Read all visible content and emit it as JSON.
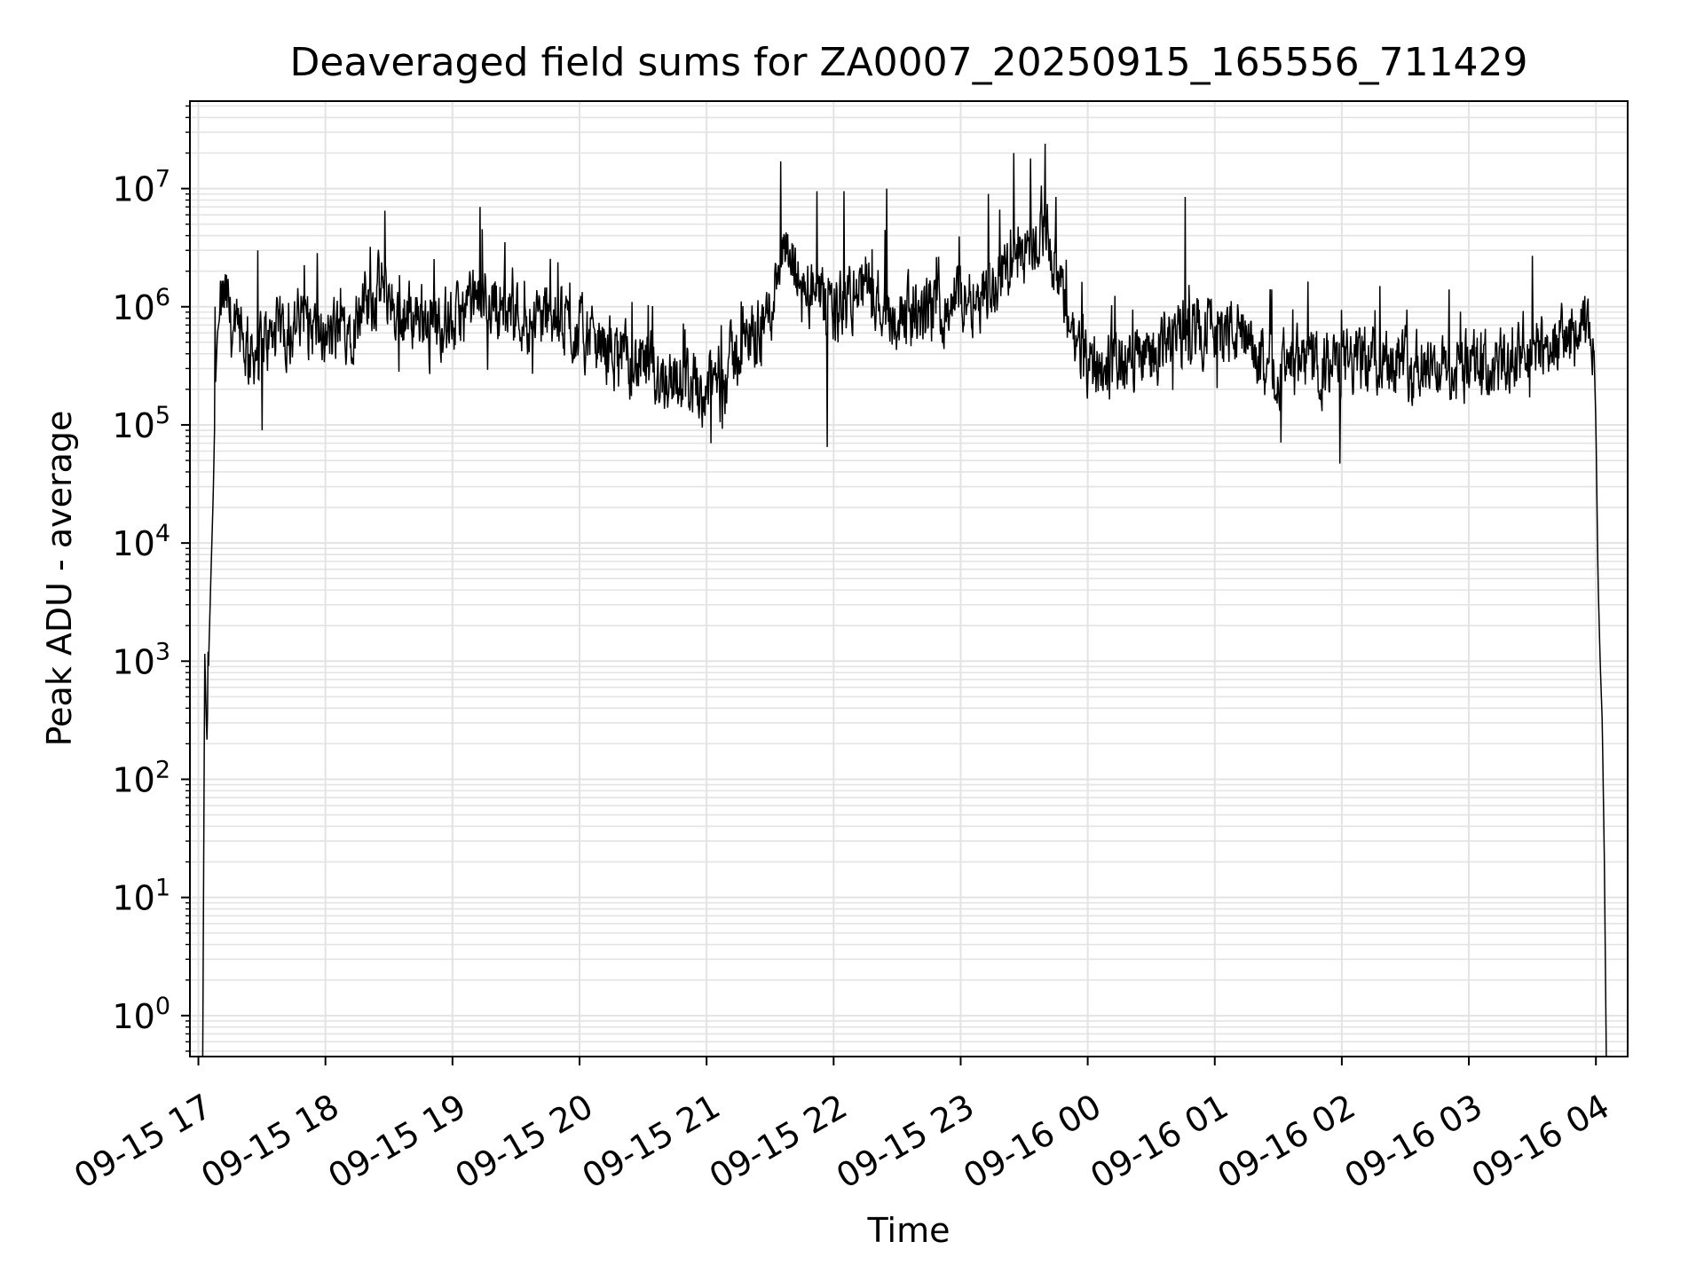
{
  "chart_data": {
    "type": "line",
    "title": "Deaveraged field sums for ZA0007_20250915_165556_711429",
    "xlabel": "Time",
    "ylabel": "Peak ADU - average",
    "yscale": "log",
    "ylim": [
      0.45,
      55000000
    ],
    "xlim": [
      "2025-09-15T16:56:00",
      "2025-09-16T04:15:00"
    ],
    "grid": true,
    "legend": "none",
    "line_color": "#000000",
    "grid_color": "#e3e3e3",
    "x_ticks": [
      {
        "t": "2025-09-15T17:00:00",
        "label": "09-15 17"
      },
      {
        "t": "2025-09-15T18:00:00",
        "label": "09-15 18"
      },
      {
        "t": "2025-09-15T19:00:00",
        "label": "09-15 19"
      },
      {
        "t": "2025-09-15T20:00:00",
        "label": "09-15 20"
      },
      {
        "t": "2025-09-15T21:00:00",
        "label": "09-15 21"
      },
      {
        "t": "2025-09-15T22:00:00",
        "label": "09-15 22"
      },
      {
        "t": "2025-09-15T23:00:00",
        "label": "09-15 23"
      },
      {
        "t": "2025-09-16T00:00:00",
        "label": "09-16 00"
      },
      {
        "t": "2025-09-16T01:00:00",
        "label": "09-16 01"
      },
      {
        "t": "2025-09-16T02:00:00",
        "label": "09-16 02"
      },
      {
        "t": "2025-09-16T03:00:00",
        "label": "09-16 03"
      },
      {
        "t": "2025-09-16T04:00:00",
        "label": "09-16 04"
      }
    ],
    "y_ticks": [
      {
        "value": 1,
        "base": "10",
        "exp": "0"
      },
      {
        "value": 10,
        "base": "10",
        "exp": "1"
      },
      {
        "value": 100,
        "base": "10",
        "exp": "2"
      },
      {
        "value": 1000,
        "base": "10",
        "exp": "3"
      },
      {
        "value": 10000,
        "base": "10",
        "exp": "4"
      },
      {
        "value": 100000,
        "base": "10",
        "exp": "5"
      },
      {
        "value": 1000000,
        "base": "10",
        "exp": "6"
      },
      {
        "value": 10000000,
        "base": "10",
        "exp": "7"
      }
    ],
    "series": [
      {
        "x": [
          "2025-09-15T17:02:00",
          "2025-09-15T17:03:00",
          "2025-09-15T17:04:00",
          "2025-09-15T17:05:00",
          "2025-09-15T17:06:00",
          "2025-09-15T17:07:00",
          "2025-09-15T17:08:00",
          "2025-09-15T17:09:00",
          "2025-09-15T17:10:00",
          "2025-09-15T17:12:00",
          "2025-09-15T17:14:00",
          "2025-09-15T17:16:00",
          "2025-09-15T17:20:00",
          "2025-09-15T17:25:00",
          "2025-09-15T17:30:00",
          "2025-09-15T17:40:00",
          "2025-09-15T17:50:00",
          "2025-09-15T18:00:00",
          "2025-09-15T18:10:00",
          "2025-09-15T18:20:00",
          "2025-09-15T18:27:00",
          "2025-09-15T18:35:00",
          "2025-09-15T18:45:00",
          "2025-09-15T19:00:00",
          "2025-09-15T19:15:00",
          "2025-09-15T19:30:00",
          "2025-09-15T19:45:00",
          "2025-09-15T20:00:00",
          "2025-09-15T20:15:00",
          "2025-09-15T20:30:00",
          "2025-09-15T20:45:00",
          "2025-09-15T21:00:00",
          "2025-09-15T21:15:00",
          "2025-09-15T21:30:00",
          "2025-09-15T21:35:00",
          "2025-09-15T21:45:00",
          "2025-09-15T22:00:00",
          "2025-09-15T22:15:00",
          "2025-09-15T22:30:00",
          "2025-09-15T22:45:00",
          "2025-09-15T23:00:00",
          "2025-09-15T23:15:00",
          "2025-09-15T23:25:00",
          "2025-09-15T23:40:00",
          "2025-09-15T23:50:00",
          "2025-09-16T00:00:00",
          "2025-09-16T00:15:00",
          "2025-09-16T00:30:00",
          "2025-09-16T00:45:00",
          "2025-09-16T01:00:00",
          "2025-09-16T01:10:00",
          "2025-09-16T01:20:00",
          "2025-09-16T01:40:00",
          "2025-09-16T02:00:00",
          "2025-09-16T02:20:00",
          "2025-09-16T02:40:00",
          "2025-09-16T03:00:00",
          "2025-09-16T03:20:00",
          "2025-09-16T03:40:00",
          "2025-09-16T03:55:00",
          "2025-09-16T03:59:00",
          "2025-09-16T04:00:00",
          "2025-09-16T04:01:00",
          "2025-09-16T04:02:00",
          "2025-09-16T04:03:00",
          "2025-09-16T04:04:00",
          "2025-09-16T04:05:00",
          "2025-09-16T04:06:00"
        ],
        "y": [
          0.3,
          1200,
          200,
          1300,
          6000,
          25000,
          200000,
          600000,
          800000,
          1200000,
          1000000,
          600000,
          500000,
          400000,
          500000,
          600000,
          800000,
          500000,
          700000,
          1000000,
          1500000,
          800000,
          900000,
          700000,
          1200000,
          900000,
          800000,
          600000,
          400000,
          300000,
          250000,
          200000,
          400000,
          900000,
          3000000,
          1500000,
          900000,
          1500000,
          800000,
          900000,
          1200000,
          1500000,
          2500000,
          5000000,
          800000,
          300000,
          350000,
          400000,
          600000,
          700000,
          600000,
          350000,
          300000,
          320000,
          400000,
          300000,
          300000,
          320000,
          500000,
          600000,
          500000,
          100000,
          5000,
          1000,
          300,
          20,
          0.3,
          0.3
        ],
        "noise_amplitude_decades": 0.45,
        "spikes": [
          {
            "t": "2025-09-15T17:04:30",
            "value": 1200
          },
          {
            "t": "2025-09-15T17:08:00",
            "value": 1000000
          },
          {
            "t": "2025-09-15T17:28:00",
            "value": 3000000
          },
          {
            "t": "2025-09-15T18:28:00",
            "value": 6500000
          },
          {
            "t": "2025-09-15T19:13:00",
            "value": 7000000
          },
          {
            "t": "2025-09-15T21:35:00",
            "value": 17000000
          },
          {
            "t": "2025-09-15T21:52:00",
            "value": 9500000
          },
          {
            "t": "2025-09-15T22:05:00",
            "value": 9500000
          },
          {
            "t": "2025-09-15T22:25:00",
            "value": 10000000
          },
          {
            "t": "2025-09-15T23:13:00",
            "value": 9000000
          },
          {
            "t": "2025-09-15T23:25:00",
            "value": 20000000
          },
          {
            "t": "2025-09-15T23:33:00",
            "value": 18000000
          },
          {
            "t": "2025-09-15T23:40:00",
            "value": 24000000
          },
          {
            "t": "2025-09-15T23:45:00",
            "value": 8500000
          },
          {
            "t": "2025-09-16T00:46:00",
            "value": 8500000
          },
          {
            "t": "2025-09-16T02:18:00",
            "value": 1500000
          },
          {
            "t": "2025-09-16T03:30:00",
            "value": 2700000
          },
          {
            "t": "2025-09-15T21:57:00",
            "value": 65000
          },
          {
            "t": "2025-09-16T01:59:00",
            "value": 47000
          },
          {
            "t": "2025-09-15T17:30:00",
            "value": 90000
          },
          {
            "t": "2025-09-15T21:02:00",
            "value": 70000
          }
        ]
      }
    ]
  }
}
